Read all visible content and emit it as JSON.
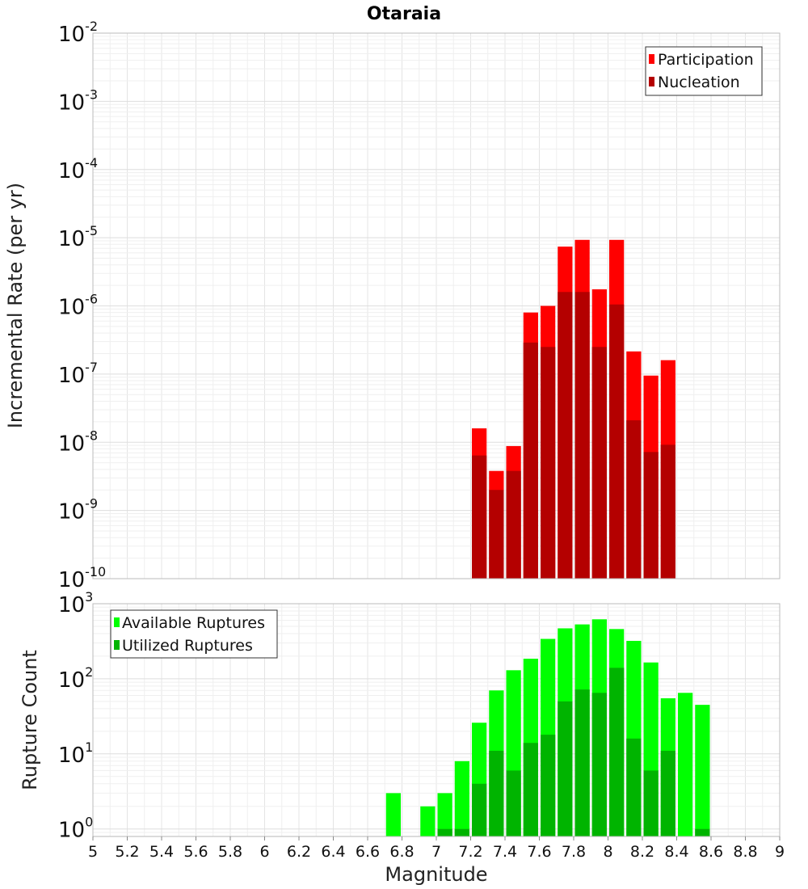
{
  "chart_data": {
    "type": "bar",
    "title": "Otaraia",
    "xlabel": "Magnitude",
    "xlim": [
      5,
      9
    ],
    "x_ticks": [
      "5",
      "5.2",
      "5.4",
      "5.6",
      "5.8",
      "6",
      "6.2",
      "6.4",
      "6.6",
      "6.8",
      "7",
      "7.2",
      "7.4",
      "7.6",
      "7.8",
      "8",
      "8.2",
      "8.4",
      "8.6",
      "8.8",
      "9"
    ],
    "bin_width": 0.1,
    "panels": [
      {
        "ylabel": "Incremental Rate (per yr)",
        "yscale": "log",
        "ylim_exponents": [
          -10,
          -2
        ],
        "legend_position": "top-right",
        "series": [
          {
            "name": "Participation",
            "color": "#ff0000",
            "x": [
              7.25,
              7.35,
              7.45,
              7.55,
              7.65,
              7.75,
              7.85,
              7.95,
              8.05,
              8.15,
              8.25,
              8.35
            ],
            "values": [
              1.6e-08,
              3.8e-09,
              8.8e-09,
              8e-07,
              1e-06,
              7.4e-06,
              9.3e-06,
              1.75e-06,
              9.3e-06,
              2.15e-07,
              9.5e-08,
              1.6e-07
            ]
          },
          {
            "name": "Nucleation",
            "color": "#b40000",
            "x": [
              7.25,
              7.35,
              7.45,
              7.55,
              7.65,
              7.75,
              7.85,
              7.95,
              8.05,
              8.15,
              8.25,
              8.35
            ],
            "values": [
              6.4e-09,
              2e-09,
              3.8e-09,
              2.9e-07,
              2.5e-07,
              1.6e-06,
              1.6e-06,
              2.5e-07,
              1.05e-06,
              2.1e-08,
              7.2e-09,
              9.2e-09
            ]
          }
        ]
      },
      {
        "ylabel": "Rupture Count",
        "yscale": "log",
        "ylim_exponents": [
          -0.1,
          3
        ],
        "legend_position": "top-left",
        "series": [
          {
            "name": "Available Ruptures",
            "color": "#00ff00",
            "x": [
              6.75,
              6.95,
              7.05,
              7.15,
              7.25,
              7.35,
              7.45,
              7.55,
              7.65,
              7.75,
              7.85,
              7.95,
              8.05,
              8.15,
              8.25,
              8.35,
              8.45,
              8.55
            ],
            "values": [
              3,
              2,
              3,
              8,
              26,
              70,
              130,
              185,
              340,
              470,
              530,
              620,
              460,
              320,
              165,
              55,
              65,
              45
            ]
          },
          {
            "name": "Utilized Ruptures",
            "color": "#00b400",
            "x": [
              7.05,
              7.15,
              7.25,
              7.35,
              7.45,
              7.55,
              7.65,
              7.75,
              7.85,
              7.95,
              8.05,
              8.15,
              8.25,
              8.35,
              8.55
            ],
            "values": [
              1,
              1,
              4,
              11,
              6,
              14,
              18,
              50,
              72,
              65,
              140,
              16,
              6,
              11,
              1
            ]
          }
        ]
      }
    ]
  }
}
